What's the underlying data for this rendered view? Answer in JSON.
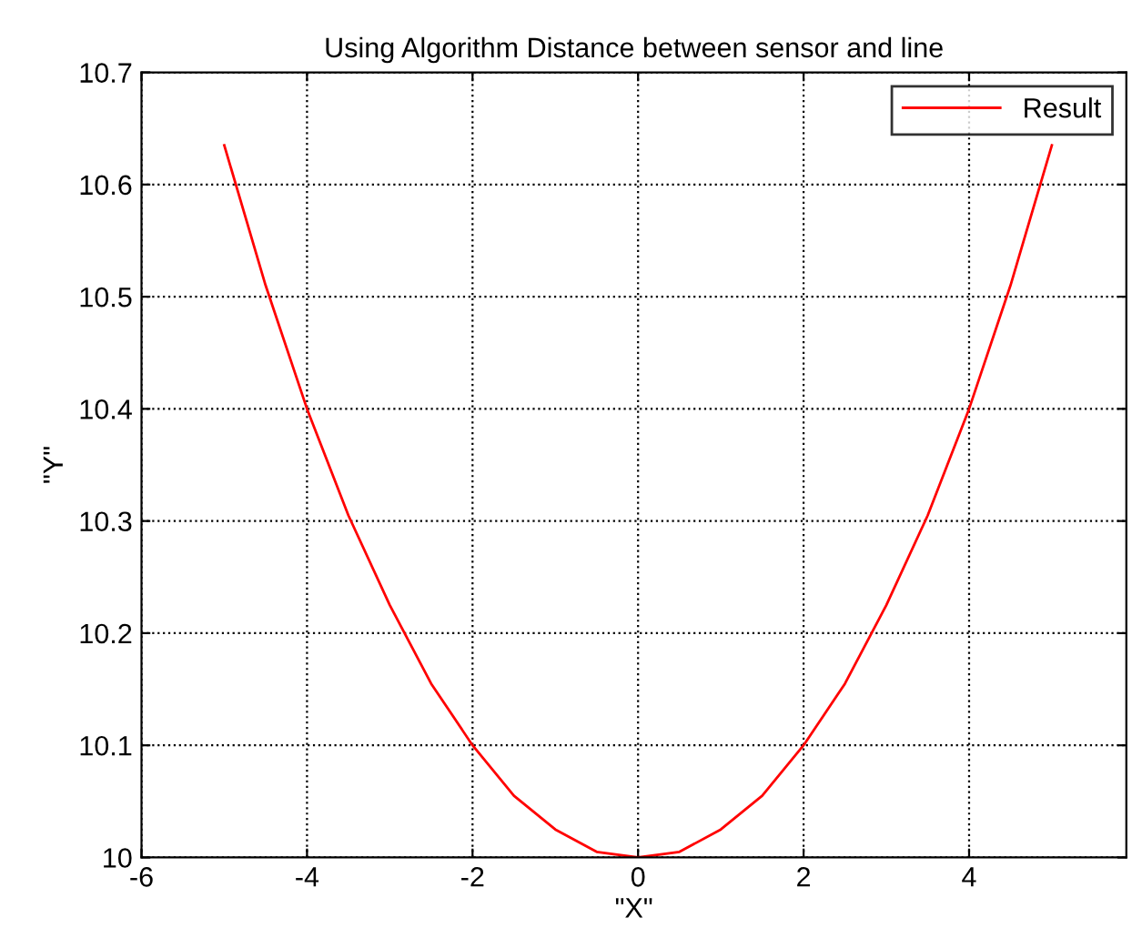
{
  "chart_data": {
    "type": "line",
    "title": "Using Algorithm Distance between sensor and line",
    "xlabel": "\"X\"",
    "ylabel": "\"Y\"",
    "x": [
      -5,
      -4.5,
      -4,
      -3.5,
      -3,
      -2.5,
      -2,
      -1.5,
      -1,
      -0.5,
      0,
      0.5,
      1,
      1.5,
      2,
      2.5,
      3,
      3.5,
      4,
      4.5,
      5
    ],
    "series": [
      {
        "name": "Result",
        "color": "#ff0000",
        "values": [
          10.635,
          10.51,
          10.4,
          10.305,
          10.225,
          10.155,
          10.1,
          10.055,
          10.025,
          10.005,
          10.0,
          10.005,
          10.025,
          10.055,
          10.1,
          10.155,
          10.225,
          10.305,
          10.4,
          10.51,
          10.635
        ]
      }
    ],
    "xlim": [
      -6,
      5.9
    ],
    "xticks": [
      -6,
      -4,
      -2,
      0,
      2,
      4
    ],
    "ylim": [
      10,
      10.7
    ],
    "yticks": [
      10,
      10.1,
      10.2,
      10.3,
      10.4,
      10.5,
      10.6,
      10.7
    ],
    "grid": true,
    "legend": "top right",
    "marker": "none",
    "line_style": "solid"
  }
}
